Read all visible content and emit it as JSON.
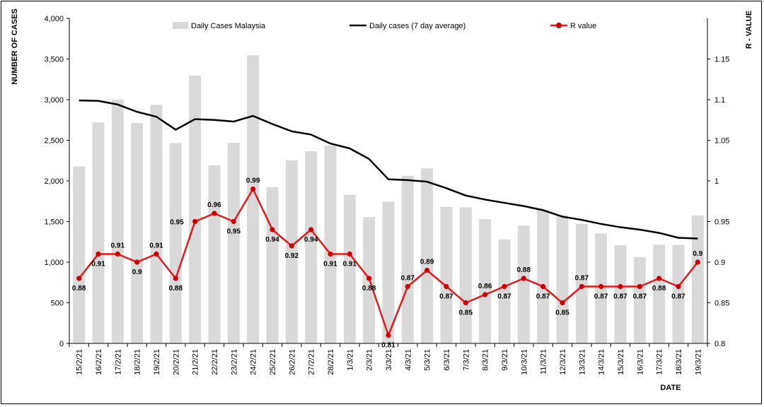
{
  "chart_data": {
    "type": "bar",
    "xlabel": "DATE",
    "ylabel": "NUMBER OF CASES",
    "y2label": "R - VALUE",
    "ylim": [
      0,
      4000
    ],
    "y2lim": [
      0.8,
      1.2
    ],
    "yticks": [
      "0",
      "500",
      "1,000",
      "1,500",
      "2,000",
      "2,500",
      "3,000",
      "3,500",
      "4,000"
    ],
    "y2ticks": [
      "0.8",
      "0.85",
      "0.9",
      "0.95",
      "1",
      "1.05",
      "1.1",
      "1.15"
    ],
    "legend_position": "top",
    "grid": false,
    "categories": [
      "15/2/21",
      "16/2/21",
      "17/2/21",
      "18/2/21",
      "19/2/21",
      "20/2/21",
      "21/2/21",
      "22/2/21",
      "23/2/21",
      "24/2/21",
      "25/2/21",
      "26/2/21",
      "27/2/21",
      "28/2/21",
      "1/3/21",
      "2/3/21",
      "3/3/21",
      "4/3/21",
      "5/3/21",
      "6/3/21",
      "7/3/21",
      "8/3/21",
      "9/3/21",
      "10/3/21",
      "11/3/21",
      "12/3/21",
      "13/3/21",
      "14/3/21",
      "15/3/21",
      "16/3/21",
      "17/3/21",
      "18/3/21",
      "19/3/21"
    ],
    "series": [
      {
        "name": "Daily Cases Malaysia",
        "kind": "bar",
        "axis": "left",
        "color": "#d9d9d9",
        "values": [
          2176,
          2720,
          3000,
          2712,
          2936,
          2464,
          3297,
          2192,
          2468,
          3545,
          1924,
          2253,
          2364,
          2437,
          1828,
          1555,
          1745,
          2063,
          2154,
          1680,
          1675,
          1529,
          1280,
          1451,
          1648,
          1578,
          1470,
          1354,
          1208,
          1063,
          1213,
          1213,
          1575
        ]
      },
      {
        "name": "Daily cases (7 day average)",
        "kind": "line",
        "axis": "left",
        "color": "#000000",
        "values": [
          2990,
          2985,
          2940,
          2850,
          2790,
          2630,
          2760,
          2750,
          2730,
          2800,
          2700,
          2610,
          2570,
          2460,
          2400,
          2270,
          2020,
          2010,
          1990,
          1910,
          1820,
          1770,
          1730,
          1690,
          1640,
          1560,
          1520,
          1470,
          1430,
          1400,
          1360,
          1300,
          1290
        ]
      },
      {
        "name": "R value",
        "kind": "line",
        "axis": "right",
        "color": "#e41a1c",
        "values": [
          0.88,
          0.91,
          0.91,
          0.9,
          0.91,
          0.88,
          0.95,
          0.96,
          0.95,
          0.99,
          0.94,
          0.92,
          0.94,
          0.91,
          0.91,
          0.88,
          0.81,
          0.87,
          0.89,
          0.87,
          0.85,
          0.86,
          0.87,
          0.88,
          0.87,
          0.85,
          0.87,
          0.87,
          0.87,
          0.87,
          0.88,
          0.87,
          0.9
        ],
        "labels": [
          "0.88",
          "0.91",
          "0.91",
          "0.9",
          "0.91",
          "0.88",
          "0.95",
          "0.96",
          "0.95",
          "0.99",
          "0.94",
          "0.92",
          "0.94",
          "0.91",
          "0.91",
          "0.88",
          "0.81",
          "0.87",
          "0.89",
          "0.87",
          "0.85",
          "0.86",
          "0.87",
          "0.88",
          "0.87",
          "0.85",
          "0.87",
          "0.87",
          "0.87",
          "0.87",
          "0.88",
          "0.87",
          "0.9"
        ],
        "label_pos": [
          "below",
          "below",
          "above",
          "below",
          "above",
          "below",
          "left",
          "above",
          "below",
          "above",
          "below",
          "below",
          "below",
          "below",
          "below",
          "below",
          "below",
          "above",
          "above",
          "below",
          "below",
          "above",
          "below",
          "above",
          "below",
          "below",
          "above",
          "below",
          "below",
          "below",
          "below",
          "below",
          "above"
        ]
      }
    ]
  }
}
